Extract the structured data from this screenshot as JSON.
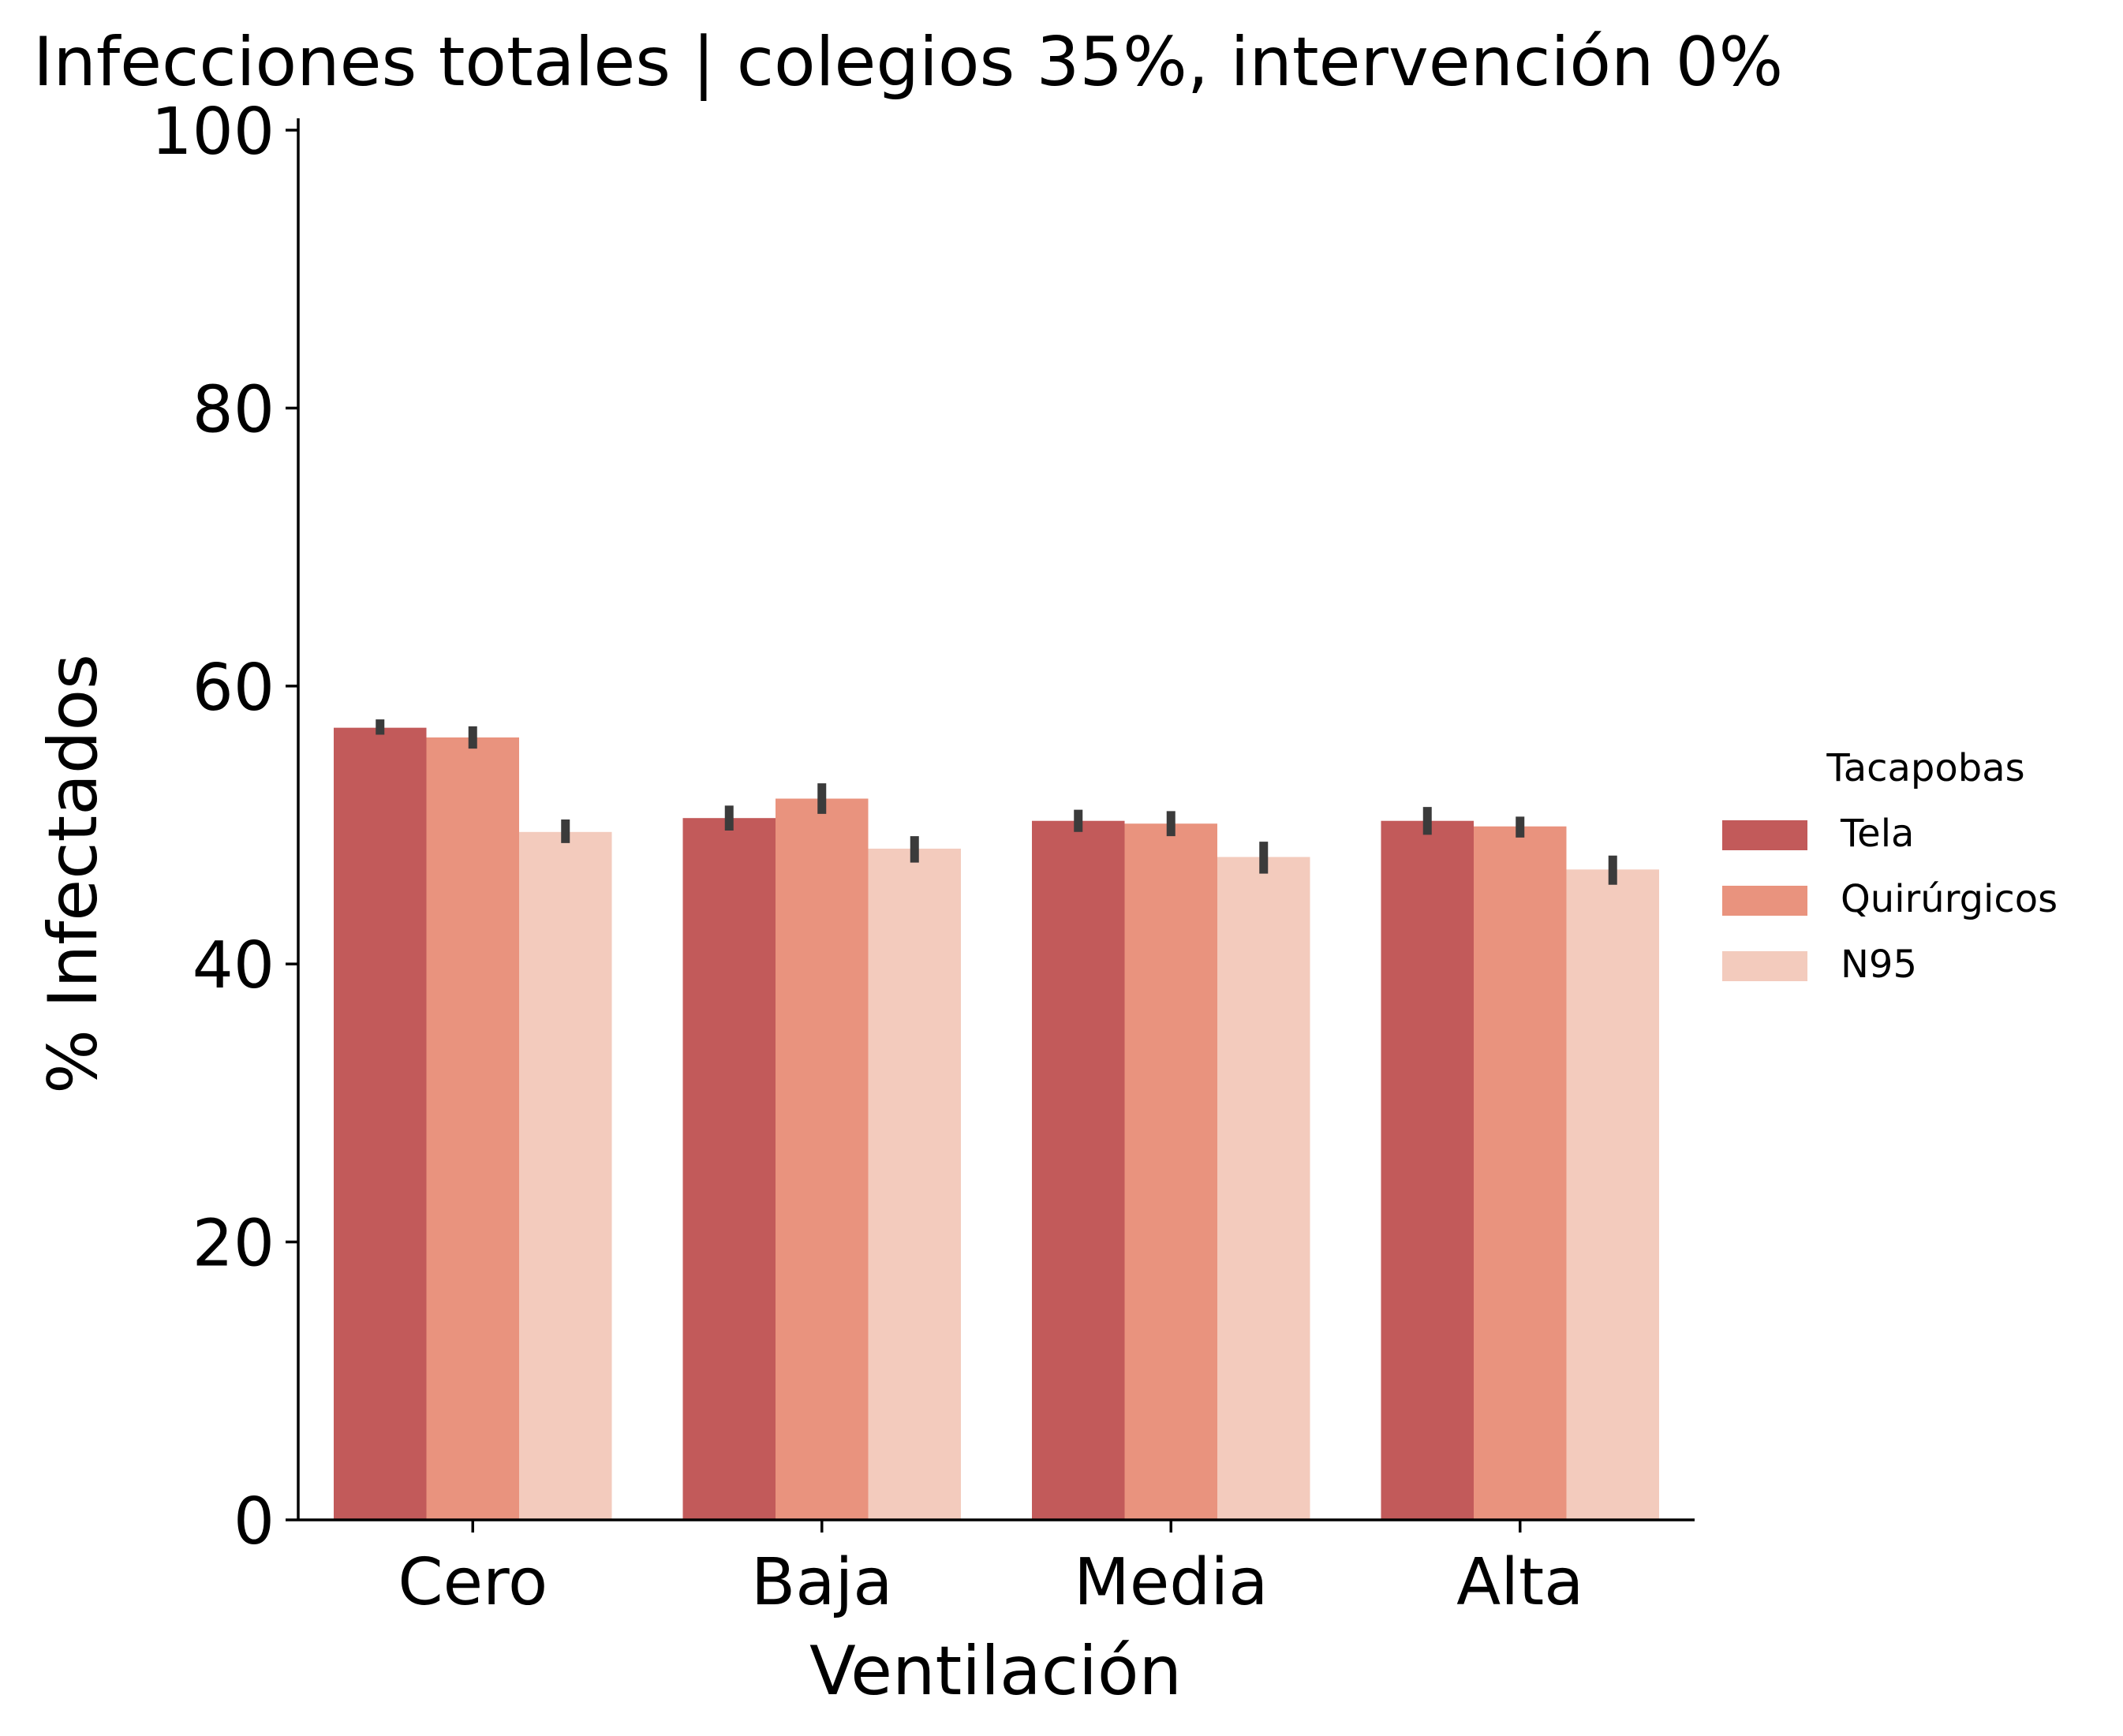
{
  "chart_data": {
    "type": "bar",
    "title": "Infecciones totales | colegios 35%, intervención 0%",
    "xlabel": "Ventilación",
    "ylabel": "% Infectados",
    "categories": [
      "Cero",
      "Baja",
      "Media",
      "Alta"
    ],
    "ylim": [
      0,
      100
    ],
    "yticks": [
      0,
      20,
      40,
      60,
      80,
      100
    ],
    "grid": false,
    "legend": {
      "title": "Tacapobas",
      "placement": "center-right outside"
    },
    "series": [
      {
        "name": "Tela",
        "color": "#c25a5a",
        "values": [
          57.0,
          50.5,
          50.3,
          50.3
        ],
        "err_low": [
          56.5,
          49.6,
          49.5,
          49.3
        ],
        "err_high": [
          57.6,
          51.4,
          51.1,
          51.3
        ]
      },
      {
        "name": "Quirúrgicos",
        "color": "#e9937e",
        "values": [
          56.3,
          51.9,
          50.1,
          49.9
        ],
        "err_low": [
          55.5,
          50.8,
          49.2,
          49.1
        ],
        "err_high": [
          57.1,
          53.0,
          51.0,
          50.6
        ]
      },
      {
        "name": "N95",
        "color": "#f3cbbd",
        "values": [
          49.5,
          48.3,
          47.7,
          46.8
        ],
        "err_low": [
          48.7,
          47.3,
          46.5,
          45.7
        ],
        "err_high": [
          50.4,
          49.2,
          48.8,
          47.8
        ]
      }
    ],
    "errorbar_color": "#3b3b3b"
  }
}
